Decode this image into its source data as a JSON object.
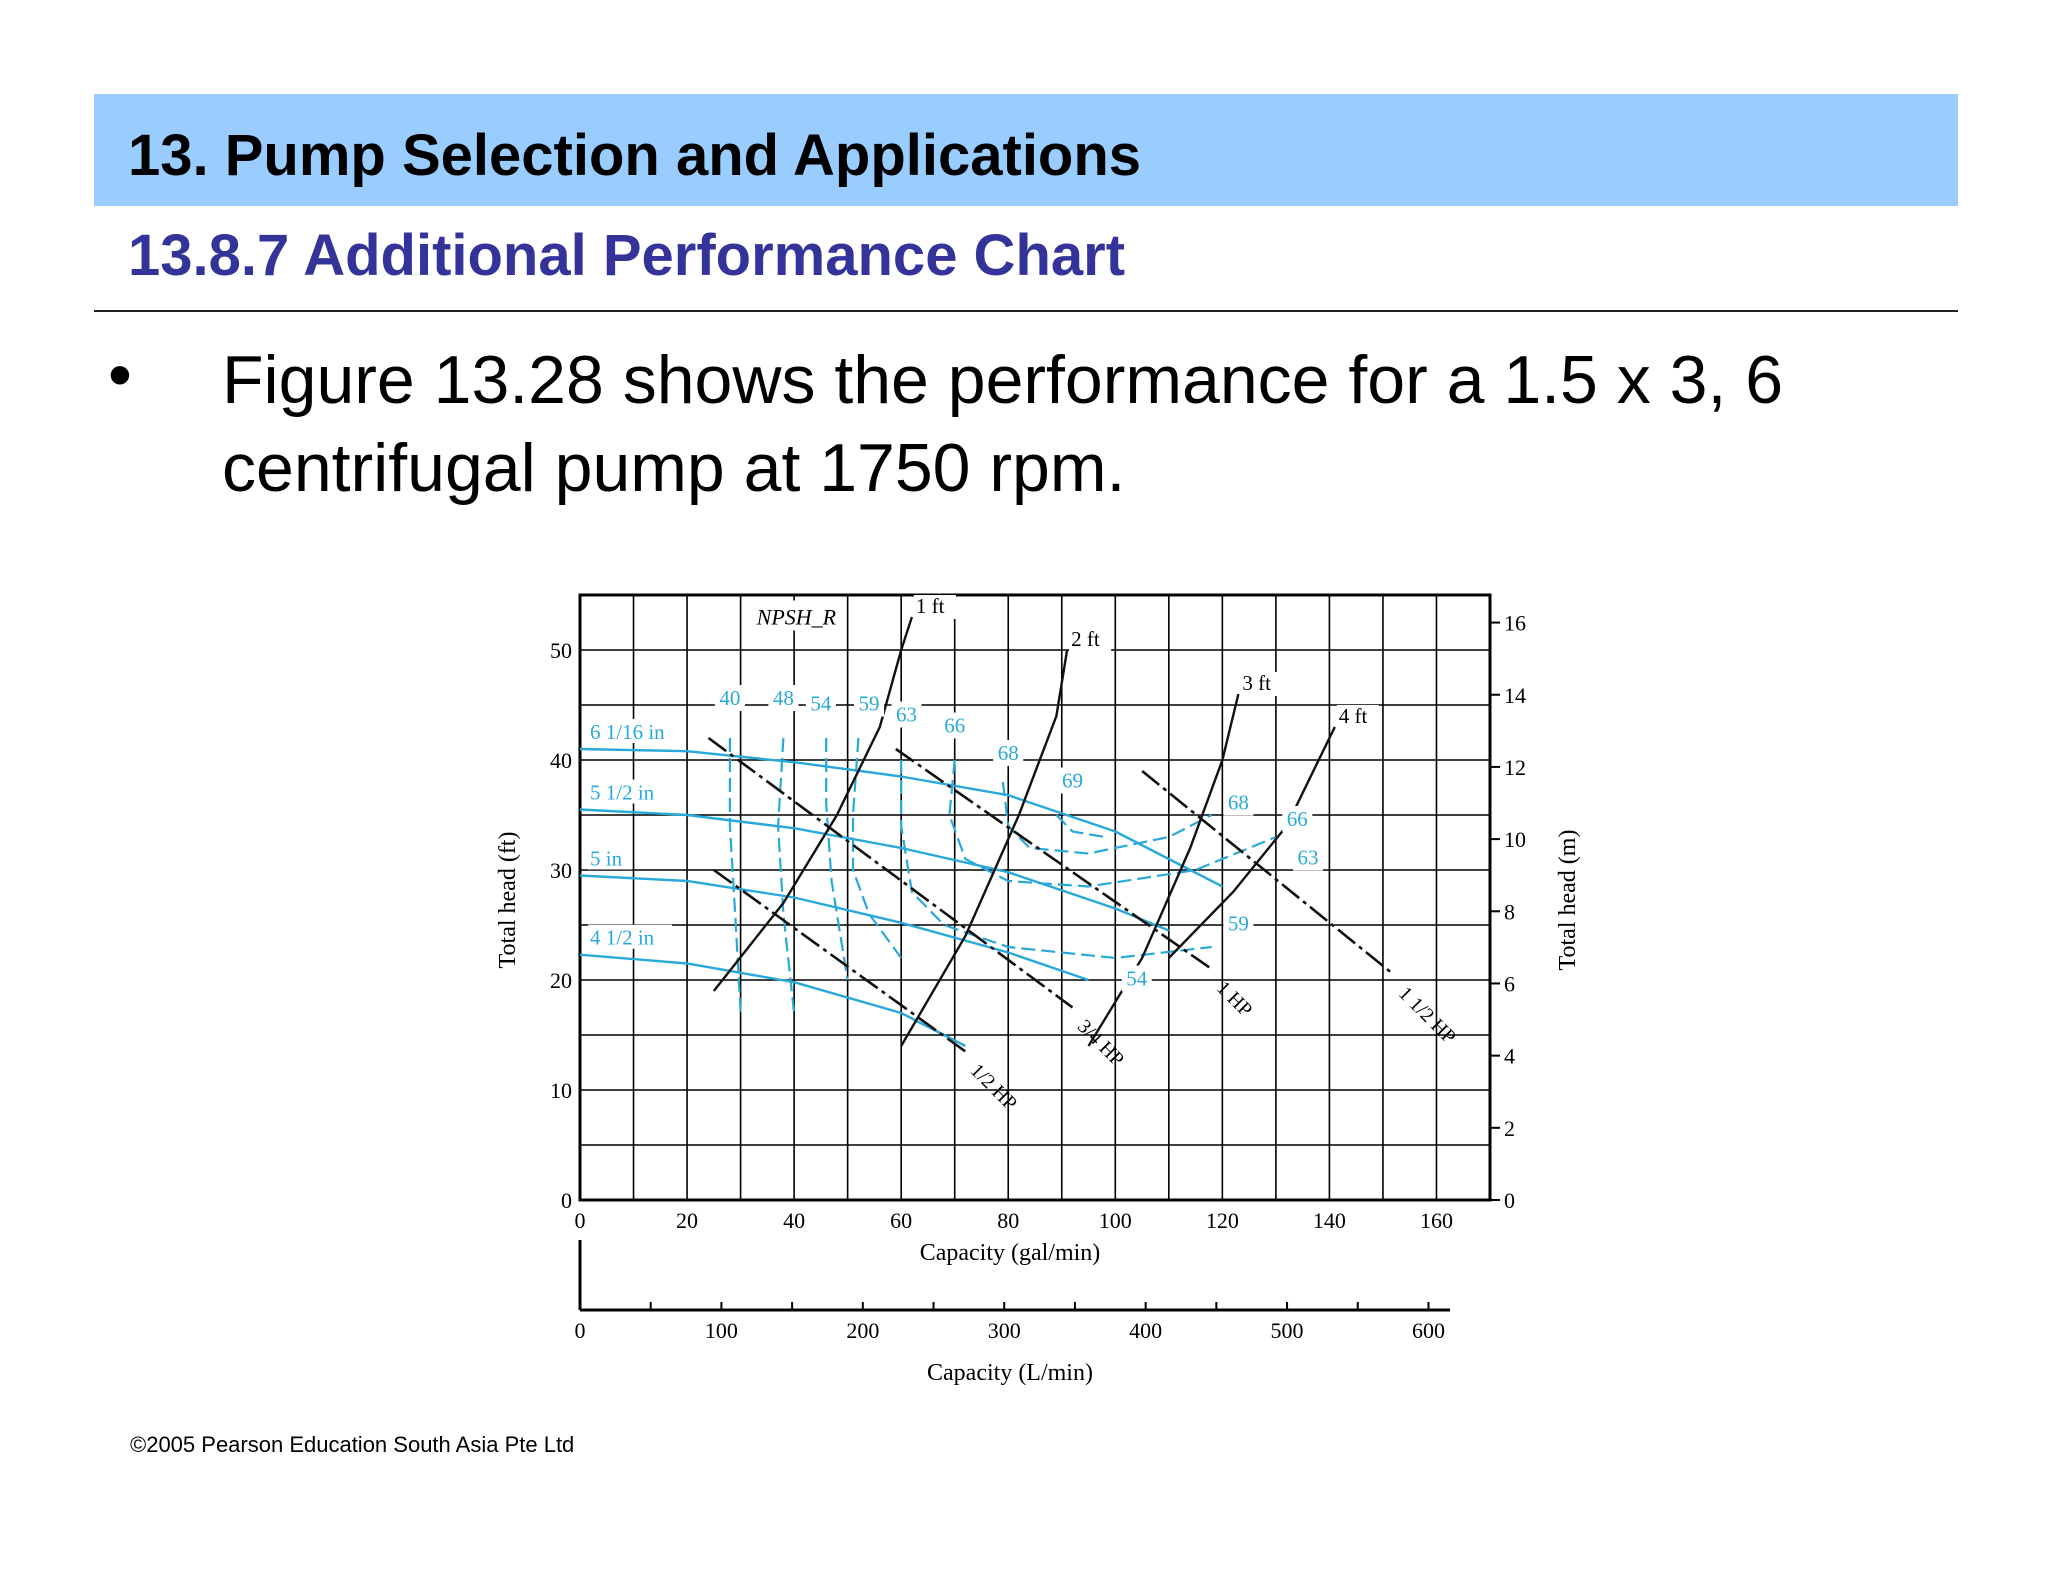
{
  "header": {
    "title": "13. Pump Selection and Applications",
    "subtitle": "13.8.7 Additional Performance Chart"
  },
  "bullet": {
    "symbol": "•",
    "text": "Figure 13.28 shows the performance for a 1.5 x 3, 6 centrifugal pump at 1750 rpm."
  },
  "footer": {
    "copyright": "©2005 Pearson Education South Asia Pte Ltd"
  },
  "chart_data": {
    "type": "line",
    "title": "",
    "xlabel": "Capacity (gal/min)",
    "ylabel": "Total head (ft)",
    "y2label": "Total head (m)",
    "x2label": "Capacity (L/min)",
    "xlim": [
      0,
      170
    ],
    "ylim": [
      0,
      55
    ],
    "x_ticks": [
      0,
      20,
      40,
      60,
      80,
      100,
      120,
      140,
      160
    ],
    "y_ticks": [
      0,
      10,
      20,
      30,
      40,
      50
    ],
    "y2_ticks": [
      0,
      2,
      4,
      6,
      8,
      10,
      12,
      14,
      16
    ],
    "x2_ticks": [
      0,
      100,
      200,
      300,
      400,
      500,
      600
    ],
    "grid": true,
    "colors": {
      "impeller": "#29a9d9",
      "power": "#111111",
      "npsh": "#111111"
    },
    "impeller_curves": [
      {
        "label": "6 1/16 in",
        "points": [
          [
            0,
            41
          ],
          [
            20,
            40.8
          ],
          [
            40,
            39.8
          ],
          [
            60,
            38.5
          ],
          [
            80,
            36.8
          ],
          [
            100,
            33.5
          ],
          [
            110,
            31
          ],
          [
            120,
            28.5
          ]
        ]
      },
      {
        "label": "5 1/2 in",
        "points": [
          [
            0,
            35.5
          ],
          [
            20,
            35
          ],
          [
            40,
            33.8
          ],
          [
            60,
            32
          ],
          [
            80,
            29.8
          ],
          [
            100,
            26.5
          ],
          [
            110,
            24.5
          ]
        ]
      },
      {
        "label": "5 in",
        "points": [
          [
            0,
            29.5
          ],
          [
            20,
            29
          ],
          [
            40,
            27.5
          ],
          [
            60,
            25.2
          ],
          [
            80,
            22.5
          ],
          [
            95,
            20
          ]
        ]
      },
      {
        "label": "4 1/2 in",
        "points": [
          [
            0,
            22.3
          ],
          [
            20,
            21.5
          ],
          [
            40,
            19.8
          ],
          [
            60,
            17
          ],
          [
            72,
            14
          ]
        ]
      }
    ],
    "efficiency_labels": [
      "40",
      "48",
      "54",
      "59",
      "63",
      "66",
      "68",
      "69",
      "68",
      "66",
      "63",
      "59",
      "54"
    ],
    "efficiency_contours": [
      {
        "label": "40",
        "points": [
          [
            28,
            42
          ],
          [
            28,
            34
          ],
          [
            29,
            26
          ],
          [
            30,
            17
          ]
        ]
      },
      {
        "label": "48",
        "points": [
          [
            38,
            42
          ],
          [
            37,
            34
          ],
          [
            38,
            26
          ],
          [
            40,
            17
          ]
        ]
      },
      {
        "label": "54",
        "points": [
          [
            46,
            42
          ],
          [
            46,
            36
          ],
          [
            47,
            29
          ],
          [
            50,
            20
          ]
        ]
      },
      {
        "label": "59",
        "points": [
          [
            52,
            42
          ],
          [
            51,
            35
          ],
          [
            51,
            30
          ],
          [
            54,
            26
          ],
          [
            60,
            22
          ]
        ]
      },
      {
        "label": "63",
        "points": [
          [
            60,
            40
          ],
          [
            60,
            34
          ],
          [
            62,
            28
          ],
          [
            68,
            25
          ],
          [
            80,
            23
          ],
          [
            100,
            22
          ],
          [
            118,
            23
          ]
        ]
      },
      {
        "label": "66",
        "points": [
          [
            70,
            40
          ],
          [
            69,
            35
          ],
          [
            72,
            31
          ],
          [
            80,
            29
          ],
          [
            95,
            28.5
          ],
          [
            115,
            30
          ],
          [
            130,
            33
          ]
        ]
      },
      {
        "label": "68",
        "points": [
          [
            79,
            38
          ],
          [
            80,
            34
          ],
          [
            84,
            32
          ],
          [
            95,
            31.5
          ],
          [
            110,
            33
          ],
          [
            118,
            35
          ]
        ]
      },
      {
        "label": "69",
        "points": [
          [
            89,
            35
          ],
          [
            92,
            33.5
          ],
          [
            98,
            33
          ]
        ]
      }
    ],
    "power_lines": [
      {
        "label": "1/2 HP",
        "points": [
          [
            25,
            30
          ],
          [
            72,
            13.5
          ]
        ]
      },
      {
        "label": "3/4 HP",
        "points": [
          [
            24,
            42
          ],
          [
            92,
            17.5
          ]
        ]
      },
      {
        "label": "1 HP",
        "points": [
          [
            59,
            41
          ],
          [
            118,
            21
          ]
        ]
      },
      {
        "label": "1 1/2 HP",
        "points": [
          [
            105,
            39
          ],
          [
            152,
            20.5
          ]
        ]
      }
    ],
    "npsh_label": "NPSH_R",
    "npsh_curves": [
      {
        "label": "1 ft",
        "points": [
          [
            25,
            19
          ],
          [
            38,
            27
          ],
          [
            48,
            35
          ],
          [
            56,
            43
          ],
          [
            60,
            50
          ],
          [
            62,
            53
          ]
        ]
      },
      {
        "label": "2 ft",
        "points": [
          [
            60,
            14
          ],
          [
            72,
            24
          ],
          [
            82,
            35
          ],
          [
            89,
            44
          ],
          [
            91,
            50
          ]
        ]
      },
      {
        "label": "3 ft",
        "points": [
          [
            95,
            14
          ],
          [
            105,
            22
          ],
          [
            114,
            32
          ],
          [
            120,
            40
          ],
          [
            123,
            46
          ]
        ]
      },
      {
        "label": "4 ft",
        "points": [
          [
            110,
            22
          ],
          [
            122,
            28
          ],
          [
            132,
            34
          ],
          [
            138,
            40
          ],
          [
            141,
            43
          ]
        ]
      }
    ]
  }
}
